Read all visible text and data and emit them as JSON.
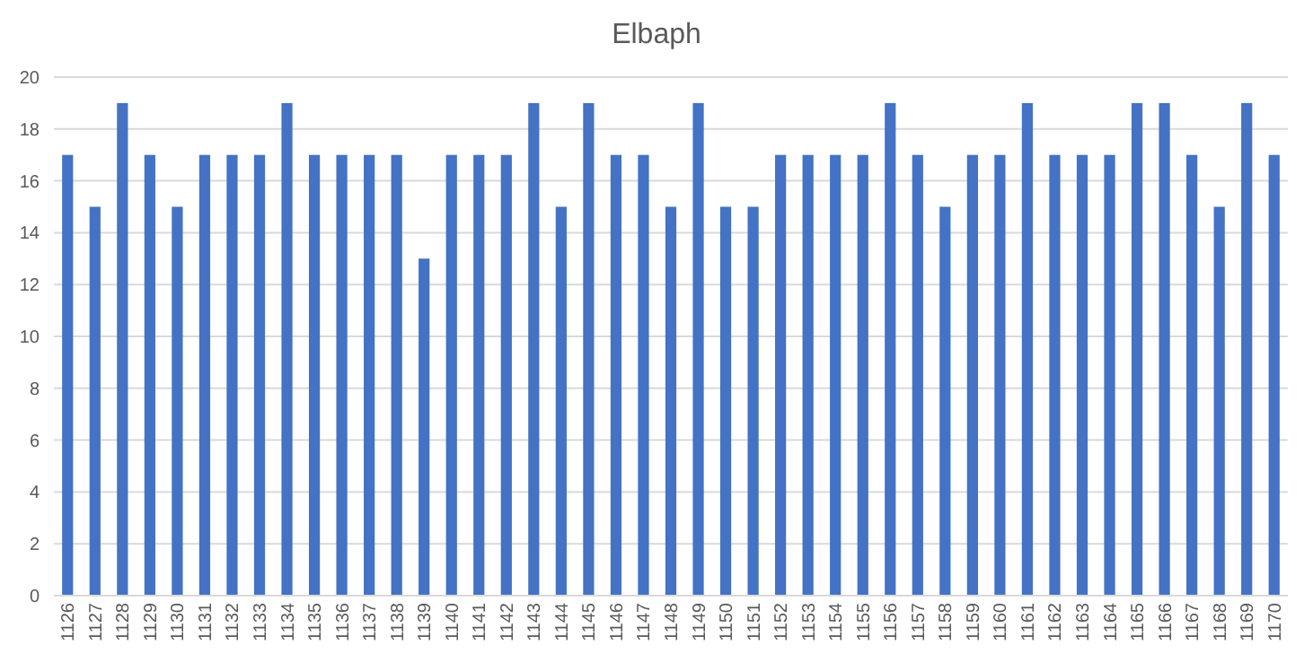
{
  "chart_data": {
    "type": "bar",
    "title": "Elbaph",
    "categories": [
      "1126",
      "1127",
      "1128",
      "1129",
      "1130",
      "1131",
      "1132",
      "1133",
      "1134",
      "1135",
      "1136",
      "1137",
      "1138",
      "1139",
      "1140",
      "1141",
      "1142",
      "1143",
      "1144",
      "1145",
      "1146",
      "1147",
      "1148",
      "1149",
      "1150",
      "1151",
      "1152",
      "1153",
      "1154",
      "1155",
      "1156",
      "1157",
      "1158",
      "1159",
      "1160",
      "1161",
      "1162",
      "1163",
      "1164",
      "1165",
      "1166",
      "1167",
      "1168",
      "1169",
      "1170"
    ],
    "values": [
      17,
      15,
      19,
      17,
      15,
      17,
      17,
      17,
      19,
      17,
      17,
      17,
      17,
      13,
      17,
      17,
      17,
      19,
      15,
      19,
      17,
      17,
      15,
      19,
      15,
      15,
      17,
      17,
      17,
      17,
      19,
      17,
      15,
      17,
      17,
      19,
      17,
      17,
      17,
      19,
      19,
      17,
      15,
      19,
      17
    ],
    "color": "#4472c4",
    "ylim": [
      0,
      20
    ],
    "yticks": [
      0,
      2,
      4,
      6,
      8,
      10,
      12,
      14,
      16,
      18,
      20
    ],
    "grid": true
  }
}
